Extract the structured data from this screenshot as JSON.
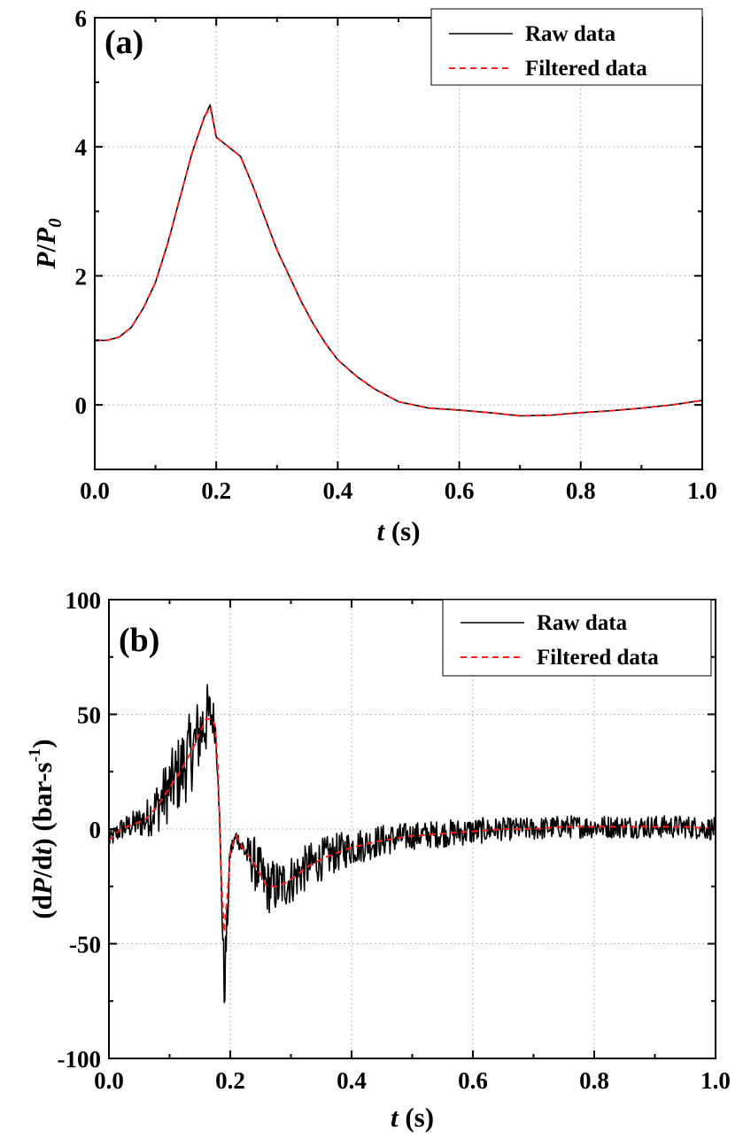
{
  "chart_data": [
    {
      "type": "line",
      "panel_label": "(a)",
      "xlabel_var": "t",
      "xlabel_unit": " (s)",
      "ylabel_parts": [
        "P",
        "/",
        "P",
        "0"
      ],
      "xlim": [
        0.0,
        1.0
      ],
      "ylim": [
        -1,
        6
      ],
      "x_ticks": [
        "0.0",
        "0.2",
        "0.4",
        "0.6",
        "0.8",
        "1.0"
      ],
      "x_tick_values": [
        0.0,
        0.2,
        0.4,
        0.6,
        0.8,
        1.0
      ],
      "y_ticks": [
        "6",
        "4",
        "2",
        "0"
      ],
      "y_tick_values": [
        6,
        4,
        2,
        0
      ],
      "grid": true,
      "legend": {
        "placement": "top-right",
        "entries": [
          "Raw data",
          "Filtered data"
        ]
      },
      "series": [
        {
          "name": "Raw data",
          "color": "#000000",
          "style": "solid",
          "x": [
            0.0,
            0.02,
            0.04,
            0.06,
            0.08,
            0.1,
            0.12,
            0.14,
            0.16,
            0.18,
            0.19,
            0.2,
            0.22,
            0.24,
            0.26,
            0.28,
            0.3,
            0.32,
            0.34,
            0.36,
            0.38,
            0.4,
            0.43,
            0.46,
            0.5,
            0.55,
            0.6,
            0.65,
            0.7,
            0.75,
            0.8,
            0.85,
            0.9,
            0.95,
            1.0
          ],
          "y": [
            1.0,
            1.0,
            1.05,
            1.2,
            1.5,
            1.9,
            2.5,
            3.2,
            3.9,
            4.45,
            4.65,
            4.15,
            4.0,
            3.85,
            3.4,
            2.9,
            2.4,
            2.0,
            1.6,
            1.25,
            0.95,
            0.7,
            0.45,
            0.25,
            0.05,
            -0.05,
            -0.08,
            -0.12,
            -0.17,
            -0.16,
            -0.12,
            -0.09,
            -0.05,
            0.0,
            0.07
          ]
        },
        {
          "name": "Filtered data",
          "color": "#ff2020",
          "style": "dashed",
          "x": [
            0.0,
            0.02,
            0.04,
            0.06,
            0.08,
            0.1,
            0.12,
            0.14,
            0.16,
            0.18,
            0.19,
            0.2,
            0.22,
            0.24,
            0.26,
            0.28,
            0.3,
            0.32,
            0.34,
            0.36,
            0.38,
            0.4,
            0.43,
            0.46,
            0.5,
            0.55,
            0.6,
            0.65,
            0.7,
            0.75,
            0.8,
            0.85,
            0.9,
            0.95,
            1.0
          ],
          "y": [
            1.0,
            1.0,
            1.05,
            1.2,
            1.5,
            1.9,
            2.5,
            3.2,
            3.9,
            4.45,
            4.62,
            4.15,
            4.0,
            3.85,
            3.4,
            2.9,
            2.4,
            2.0,
            1.6,
            1.25,
            0.95,
            0.7,
            0.45,
            0.25,
            0.05,
            -0.05,
            -0.08,
            -0.12,
            -0.17,
            -0.16,
            -0.12,
            -0.09,
            -0.05,
            0.0,
            0.07
          ]
        }
      ]
    },
    {
      "type": "line",
      "panel_label": "(b)",
      "xlabel_var": "t",
      "xlabel_unit": " (s)",
      "ylabel_parts": [
        "(d",
        "P",
        "/d",
        "t",
        ") (bar-s",
        "-1",
        ")"
      ],
      "xlim": [
        0.0,
        1.0
      ],
      "ylim": [
        -100,
        100
      ],
      "x_ticks": [
        "0.0",
        "0.2",
        "0.4",
        "0.6",
        "0.8",
        "1.0"
      ],
      "x_tick_values": [
        0.0,
        0.2,
        0.4,
        0.6,
        0.8,
        1.0
      ],
      "y_ticks": [
        "100",
        "50",
        "0",
        "-50",
        "-100"
      ],
      "y_tick_values": [
        100,
        50,
        0,
        -50,
        -100
      ],
      "grid": true,
      "legend": {
        "placement": "top-right",
        "entries": [
          "Raw data",
          "Filtered data"
        ]
      },
      "series": [
        {
          "name": "Raw data",
          "color": "#000000",
          "style": "solid",
          "x": [
            0.0,
            0.02,
            0.04,
            0.06,
            0.08,
            0.1,
            0.12,
            0.14,
            0.16,
            0.17,
            0.175,
            0.18,
            0.185,
            0.19,
            0.195,
            0.2,
            0.21,
            0.22,
            0.24,
            0.26,
            0.28,
            0.3,
            0.33,
            0.36,
            0.4,
            0.45,
            0.5,
            0.55,
            0.6,
            0.65,
            0.7,
            0.75,
            0.8,
            0.85,
            0.9,
            0.95,
            1.0
          ],
          "y": [
            -5,
            0,
            2,
            4,
            10,
            18,
            26,
            36,
            48,
            50,
            45,
            25,
            -20,
            -70,
            -40,
            -10,
            -3,
            -8,
            -15,
            -25,
            -25,
            -22,
            -16,
            -12,
            -8,
            -5,
            -3,
            -2,
            -1,
            0,
            0,
            1,
            1,
            1,
            1,
            1,
            0
          ],
          "noise_amplitude": [
            4,
            5,
            6,
            8,
            12,
            15,
            18,
            18,
            17,
            10,
            8,
            6,
            5,
            15,
            10,
            5,
            3,
            5,
            12,
            12,
            12,
            11,
            10,
            9,
            8,
            7,
            6,
            6,
            6,
            5,
            5,
            5,
            5,
            5,
            5,
            5,
            5
          ]
        },
        {
          "name": "Filtered data",
          "color": "#ff2020",
          "style": "dashed",
          "x": [
            0.0,
            0.02,
            0.04,
            0.06,
            0.08,
            0.1,
            0.12,
            0.14,
            0.16,
            0.17,
            0.175,
            0.18,
            0.185,
            0.19,
            0.195,
            0.2,
            0.21,
            0.22,
            0.24,
            0.26,
            0.28,
            0.3,
            0.33,
            0.36,
            0.4,
            0.45,
            0.5,
            0.55,
            0.6,
            0.65,
            0.7,
            0.75,
            0.8,
            0.85,
            0.9,
            0.95,
            1.0
          ],
          "y": [
            -5,
            0,
            2,
            4,
            10,
            18,
            26,
            36,
            48,
            48,
            45,
            25,
            -20,
            -45,
            -30,
            -10,
            -3,
            -8,
            -15,
            -25,
            -25,
            -22,
            -16,
            -12,
            -8,
            -5,
            -3,
            -2,
            -1,
            0,
            0,
            1,
            1,
            1,
            1,
            1,
            0
          ]
        }
      ]
    }
  ]
}
